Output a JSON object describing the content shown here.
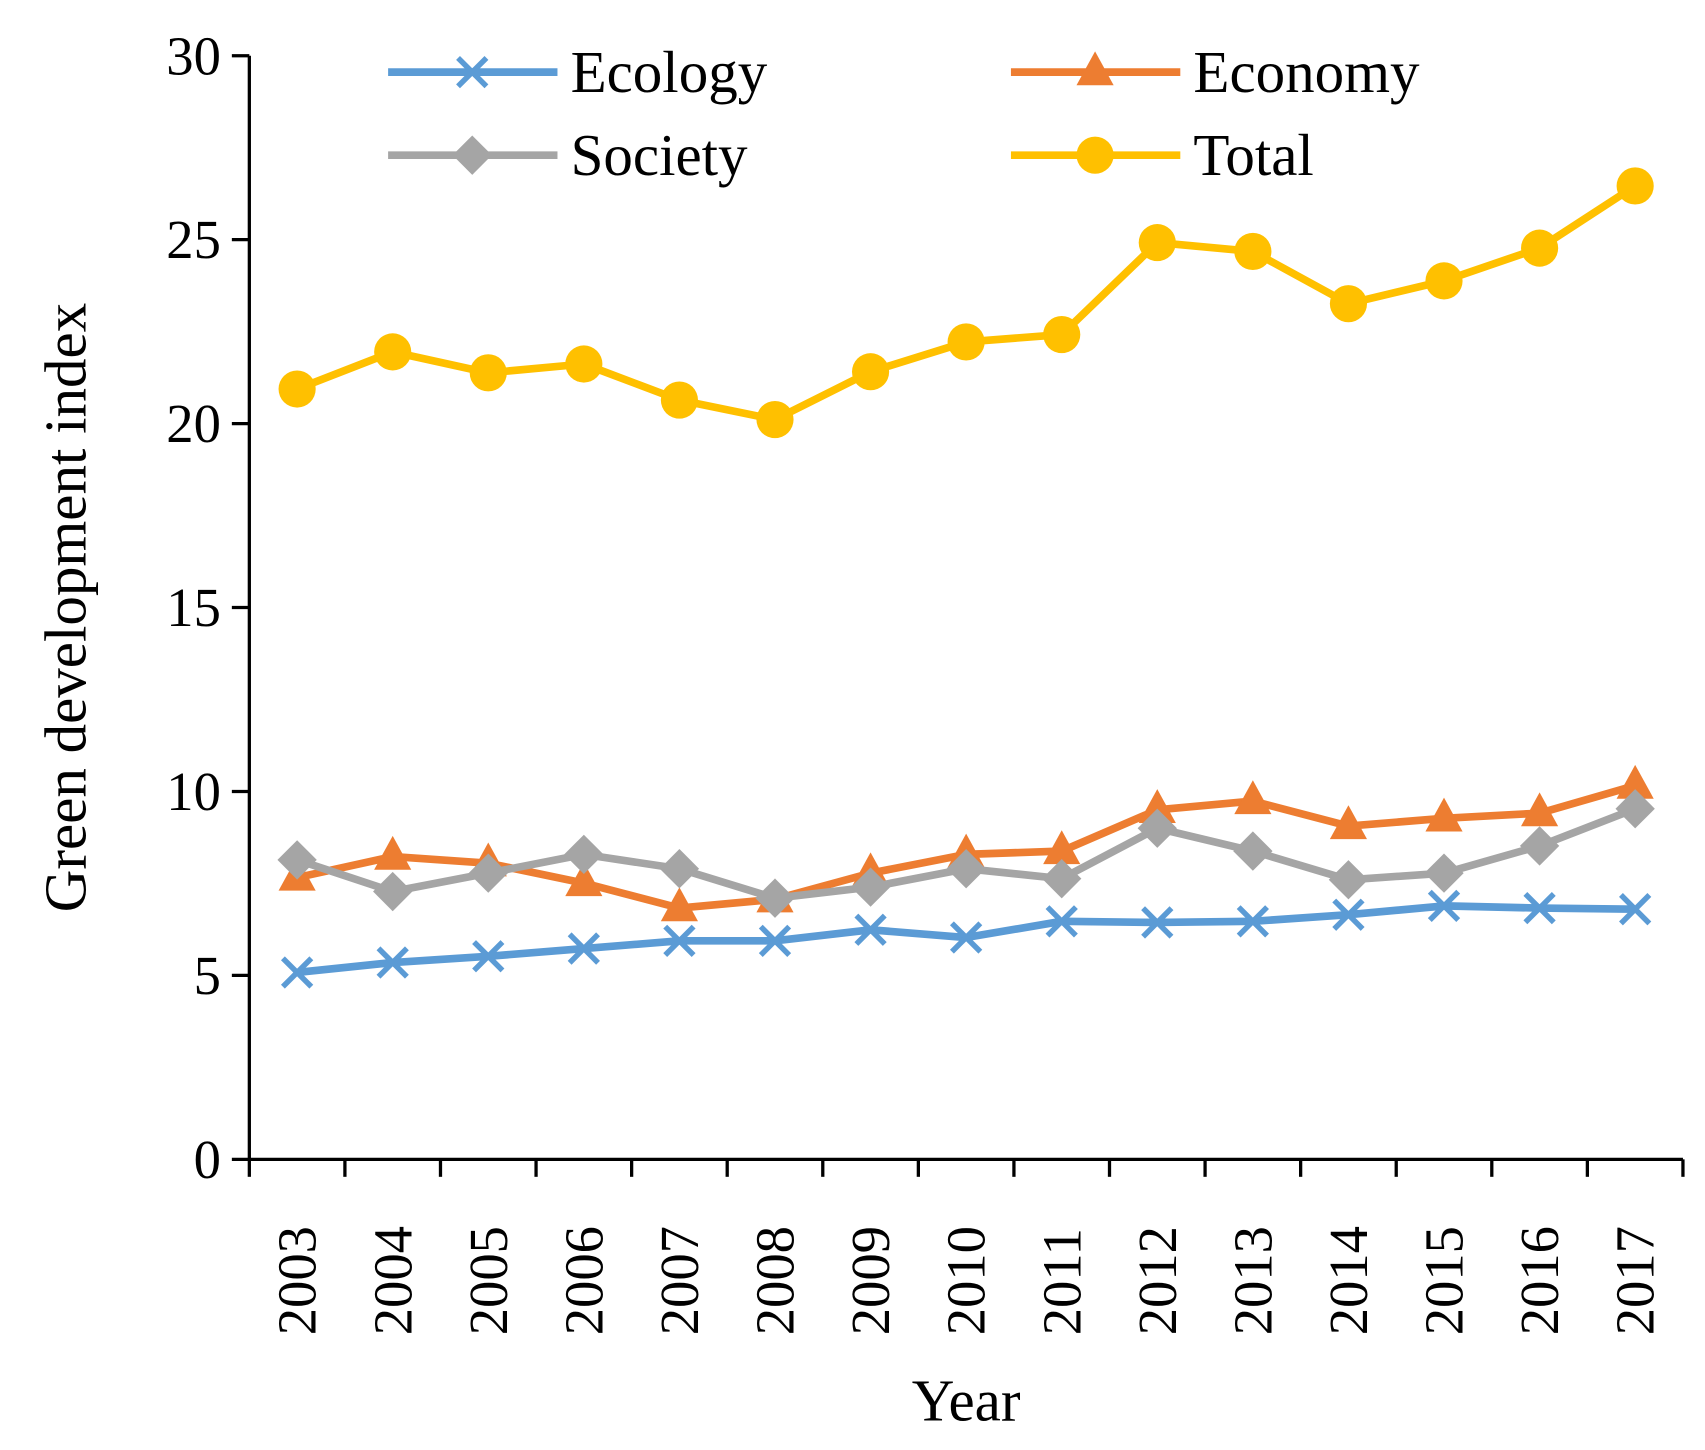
{
  "chart_data": {
    "type": "line",
    "title": "",
    "xlabel": "Year",
    "ylabel": "Green development index",
    "ylim": [
      0,
      30
    ],
    "yticks": [
      0,
      5,
      10,
      15,
      20,
      25,
      30
    ],
    "categories": [
      "2003",
      "2004",
      "2005",
      "2006",
      "2007",
      "2008",
      "2009",
      "2010",
      "2011",
      "2012",
      "2013",
      "2014",
      "2015",
      "2016",
      "2017"
    ],
    "legend_position": "top",
    "grid": false,
    "series": [
      {
        "name": "Ecology",
        "color": "#5B9BD5",
        "marker": "x",
        "values": [
          5.08,
          5.35,
          5.52,
          5.73,
          5.94,
          5.94,
          6.24,
          6.03,
          6.47,
          6.44,
          6.47,
          6.65,
          6.89,
          6.83,
          6.8
        ]
      },
      {
        "name": "Economy",
        "color": "#ED7D31",
        "marker": "triangle",
        "values": [
          7.66,
          8.23,
          8.05,
          7.51,
          6.83,
          7.07,
          7.78,
          8.29,
          8.38,
          9.5,
          9.74,
          9.06,
          9.27,
          9.41,
          10.16
        ]
      },
      {
        "name": "Society",
        "color": "#A5A5A5",
        "marker": "diamond",
        "values": [
          8.14,
          7.28,
          7.78,
          8.29,
          7.9,
          7.1,
          7.4,
          7.9,
          7.63,
          9.0,
          8.38,
          7.6,
          7.78,
          8.52,
          9.53
        ]
      },
      {
        "name": "Total",
        "color": "#FFC000",
        "marker": "circle",
        "values": [
          20.94,
          21.95,
          21.38,
          21.62,
          20.64,
          20.11,
          21.41,
          22.22,
          22.42,
          24.92,
          24.68,
          23.26,
          23.88,
          24.77,
          26.46
        ]
      }
    ]
  }
}
